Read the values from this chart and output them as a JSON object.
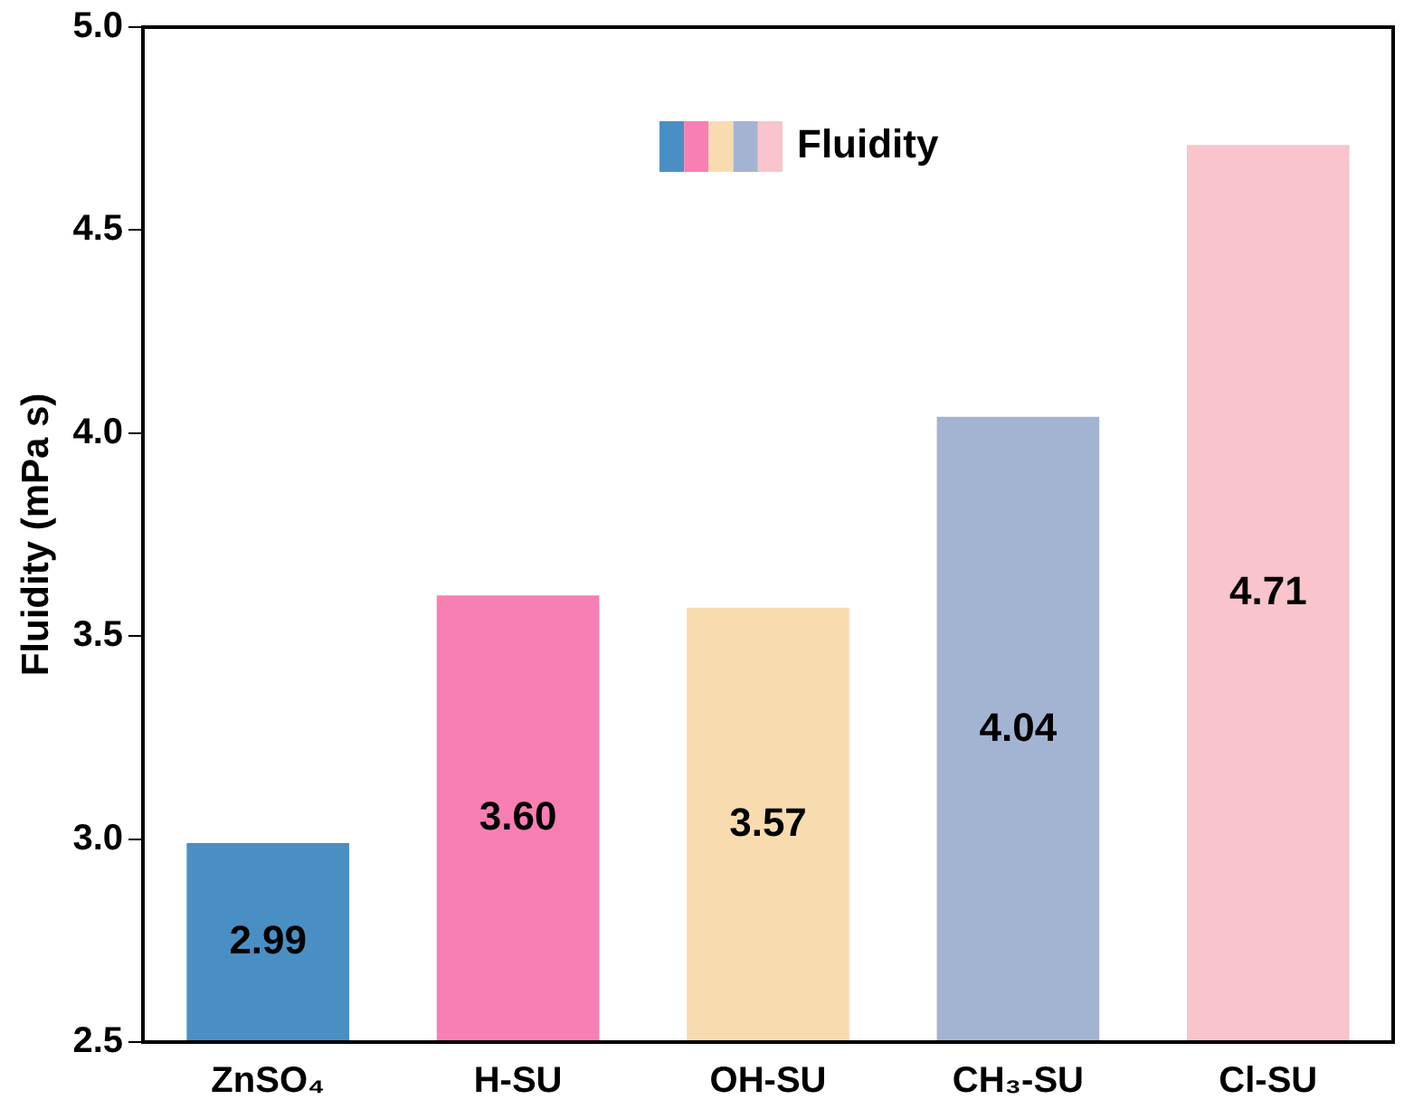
{
  "chart_data": {
    "type": "bar",
    "ylabel": "Fluidity (mPa s)",
    "categories": [
      "ZnSO₄",
      "H-SU",
      "OH-SU",
      "CH₃-SU",
      "Cl-SU"
    ],
    "series": [
      {
        "name": "Fluidity",
        "colors": [
          "#4a8fc4",
          "#f77fb4",
          "#f8dcb0",
          "#a3b4d3",
          "#f9c4cb"
        ],
        "values": [
          2.99,
          3.6,
          3.57,
          4.04,
          4.71
        ],
        "value_labels": [
          "2.99",
          "3.60",
          "3.57",
          "4.04",
          "4.71"
        ]
      }
    ],
    "ylim": [
      2.5,
      5.0
    ],
    "yticks": [
      {
        "value": 2.5,
        "label": "2.5"
      },
      {
        "value": 3,
        "label": "3.0"
      },
      {
        "value": 3.5,
        "label": "3.5"
      },
      {
        "value": 4,
        "label": "4.0"
      },
      {
        "value": 4.5,
        "label": "4.5"
      },
      {
        "value": 5,
        "label": "5.0"
      }
    ],
    "grid": false,
    "legend": "top"
  }
}
